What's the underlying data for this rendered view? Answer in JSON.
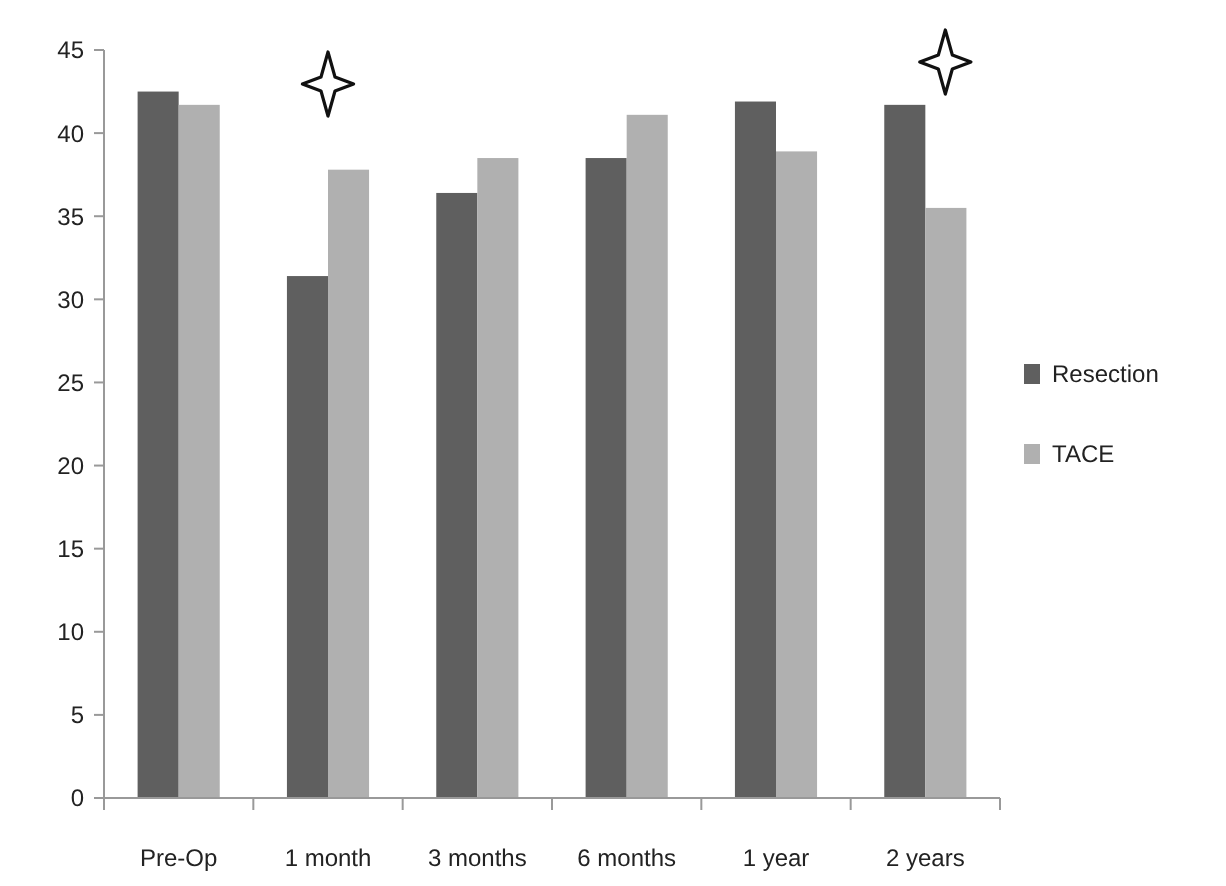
{
  "chart_data": {
    "type": "bar",
    "categories": [
      "Pre-Op",
      "1 month",
      "3 months",
      "6 months",
      "1 year",
      "2 years"
    ],
    "series": [
      {
        "name": "Resection",
        "color": "#5f5f5f",
        "values": [
          42.5,
          31.4,
          36.4,
          38.5,
          41.9,
          41.7
        ]
      },
      {
        "name": "TACE",
        "color": "#b0b0b0",
        "values": [
          41.7,
          37.8,
          38.5,
          41.1,
          38.9,
          35.5
        ]
      }
    ],
    "ylim": [
      0,
      45
    ],
    "yticks": [
      0,
      5,
      10,
      15,
      20,
      25,
      30,
      35,
      40,
      45
    ],
    "grid": false,
    "legend": "right"
  }
}
